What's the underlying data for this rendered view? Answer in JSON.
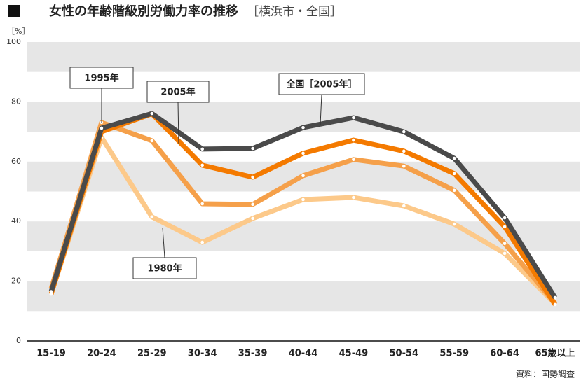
{
  "chart_data": {
    "type": "line",
    "title": "女性の年齢階級別労働力率の推移",
    "subtitle": "［横浜市・全国］",
    "y_axis_label": "［%］",
    "source": "資料：国勢調査",
    "categories": [
      "15-19",
      "20-24",
      "25-29",
      "30-34",
      "35-39",
      "40-44",
      "45-49",
      "50-54",
      "55-59",
      "60-64",
      "65歳以上"
    ],
    "series": [
      {
        "name": "全国［2005年］",
        "color": "#4a4a4a",
        "values": [
          16.5,
          71.2,
          76.1,
          64.2,
          64.4,
          71.4,
          74.7,
          70.0,
          61.1,
          41.2,
          14.5
        ]
      },
      {
        "name": "2005年",
        "color": "#f47a00",
        "values": [
          15.7,
          70.0,
          76.0,
          58.8,
          54.8,
          62.8,
          67.2,
          63.5,
          56.0,
          38.2,
          12.2
        ]
      },
      {
        "name": "1995年",
        "color": "#f5a04a",
        "values": [
          17.5,
          73.1,
          67.0,
          45.9,
          45.7,
          55.3,
          60.7,
          58.5,
          50.4,
          32.6,
          12.6
        ]
      },
      {
        "name": "1980年",
        "color": "#fcc98a",
        "values": [
          15.7,
          68.1,
          41.5,
          33.0,
          41.0,
          47.3,
          48.0,
          45.2,
          39.1,
          29.3,
          12.4
        ]
      }
    ],
    "ylim": [
      0,
      100
    ],
    "yticks": [
      0,
      20,
      40,
      60,
      80,
      100
    ],
    "grid": true
  }
}
